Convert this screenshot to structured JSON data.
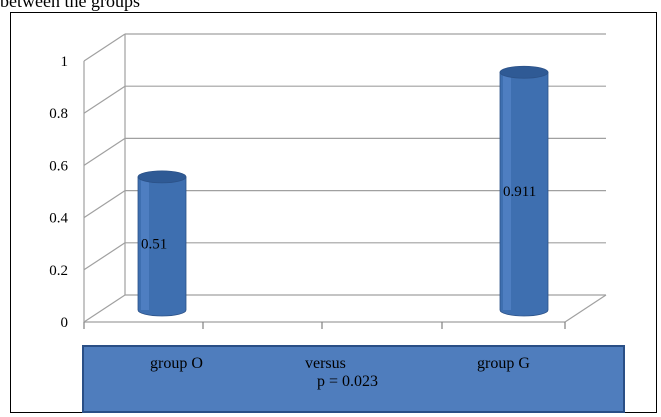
{
  "caption": "between the groups",
  "colors": {
    "bar": "#3e6fb0",
    "bar_top": "#2f5a95",
    "grid": "#a0a0a0",
    "box": "#4f7dbd",
    "box_border": "#2a4f86"
  },
  "chart_data": {
    "type": "bar",
    "style": "3d-cylinder",
    "categories": [
      "group O",
      "group G"
    ],
    "values": [
      0.51,
      0.911
    ],
    "data_labels": [
      "0.51",
      "0.911"
    ],
    "y_ticks": [
      "0",
      "0.2",
      "0.4",
      "0.6",
      "0.8",
      "1"
    ],
    "ylim": [
      0,
      1
    ],
    "grid": true,
    "legend": "none",
    "x_box": {
      "left": "group O",
      "middle": "versus",
      "right": "group G",
      "pvalue": "p = 0.023"
    }
  }
}
